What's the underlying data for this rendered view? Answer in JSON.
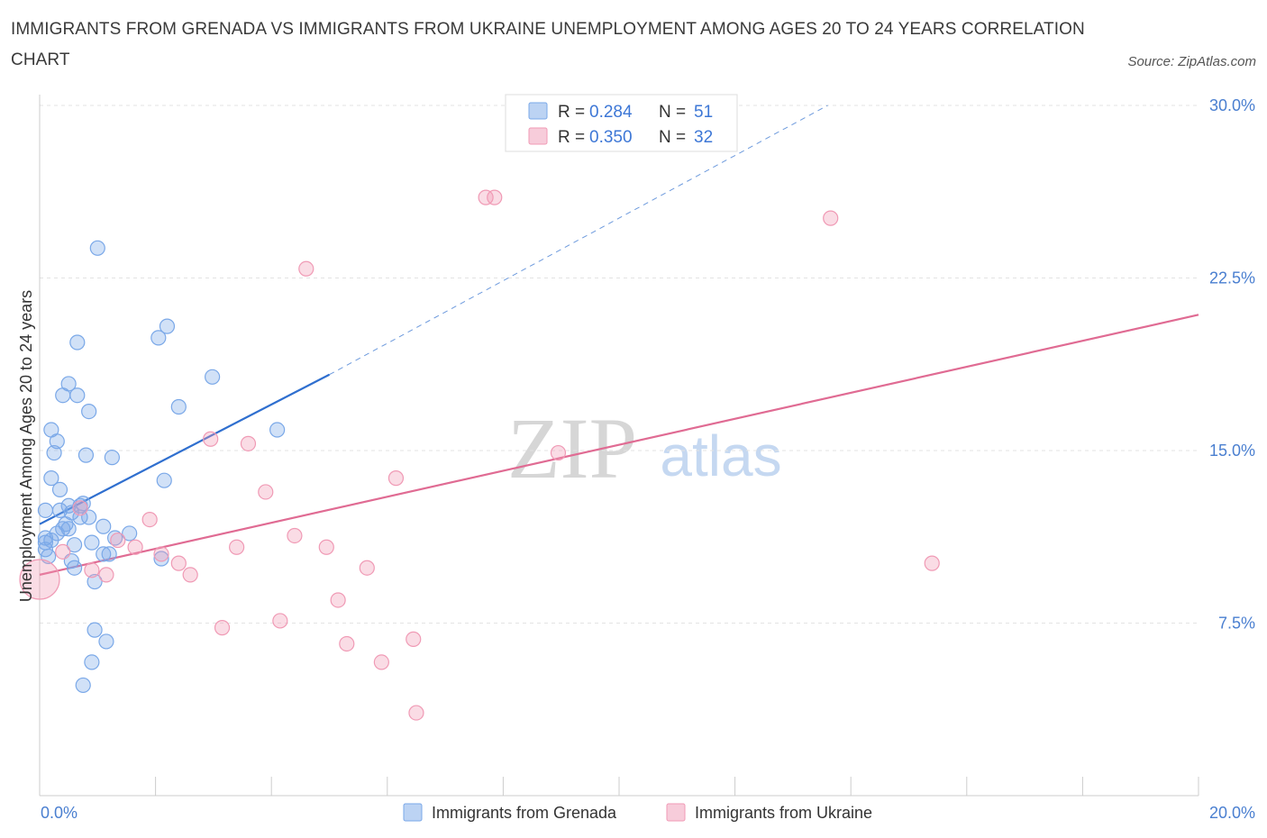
{
  "title": "IMMIGRANTS FROM GRENADA VS IMMIGRANTS FROM UKRAINE UNEMPLOYMENT AMONG AGES 20 TO 24 YEARS CORRELATION CHART",
  "source": "Source: ZipAtlas.com",
  "watermark": {
    "zip": "ZIP",
    "atlas": "atlas"
  },
  "chart_data": {
    "type": "scatter",
    "title": "IMMIGRANTS FROM GRENADA VS IMMIGRANTS FROM UKRAINE UNEMPLOYMENT AMONG AGES 20 TO 24 YEARS CORRELATION CHART",
    "xlabel": "",
    "ylabel": "Unemployment Among Ages 20 to 24 years",
    "xlim": [
      0,
      20
    ],
    "ylim": [
      0,
      30
    ],
    "x_tick_labels": {
      "min": "0.0%",
      "max": "20.0%"
    },
    "y_ticks": [
      {
        "value": 7.5,
        "label": "7.5%"
      },
      {
        "value": 15,
        "label": "15.0%"
      },
      {
        "value": 22.5,
        "label": "22.5%"
      },
      {
        "value": 30,
        "label": "30.0%"
      }
    ],
    "legend": [
      {
        "r_label": "R =",
        "r": "0.284",
        "n_label": "N =",
        "n": "51",
        "color": "#7aa8e8"
      },
      {
        "r_label": "R =",
        "r": "0.350",
        "n_label": "N =",
        "n": "32",
        "color": "#f09ab5"
      }
    ],
    "series": [
      {
        "name": "Immigrants from Grenada",
        "color": "#7aa8e8",
        "line_color": "#2f6fcf",
        "trend": {
          "x0": 0,
          "y0": 11.8,
          "x1": 5.0,
          "y1": 18.3,
          "x_dash_end": 13.6,
          "y_dash_end": 30.0
        },
        "points": [
          [
            0.1,
            11.2
          ],
          [
            0.1,
            11.0
          ],
          [
            0.1,
            10.7
          ],
          [
            0.1,
            12.4
          ],
          [
            0.2,
            11.1
          ],
          [
            0.15,
            10.4
          ],
          [
            0.2,
            13.8
          ],
          [
            0.25,
            14.9
          ],
          [
            0.2,
            15.9
          ],
          [
            0.3,
            15.4
          ],
          [
            0.35,
            12.4
          ],
          [
            0.35,
            13.3
          ],
          [
            0.4,
            11.6
          ],
          [
            0.45,
            11.8
          ],
          [
            0.4,
            17.4
          ],
          [
            0.5,
            17.9
          ],
          [
            0.5,
            11.6
          ],
          [
            0.55,
            12.3
          ],
          [
            0.6,
            10.9
          ],
          [
            0.6,
            9.9
          ],
          [
            0.55,
            10.2
          ],
          [
            0.65,
            19.7
          ],
          [
            0.65,
            17.4
          ],
          [
            0.7,
            12.1
          ],
          [
            0.7,
            12.6
          ],
          [
            0.75,
            12.7
          ],
          [
            0.8,
            14.8
          ],
          [
            0.85,
            12.1
          ],
          [
            0.85,
            16.7
          ],
          [
            0.9,
            11.0
          ],
          [
            0.95,
            9.3
          ],
          [
            0.95,
            7.2
          ],
          [
            1.0,
            23.8
          ],
          [
            1.1,
            11.7
          ],
          [
            1.1,
            10.5
          ],
          [
            1.15,
            6.7
          ],
          [
            1.2,
            10.5
          ],
          [
            1.25,
            14.7
          ],
          [
            1.3,
            11.2
          ],
          [
            1.55,
            11.4
          ],
          [
            2.05,
            19.9
          ],
          [
            2.1,
            10.3
          ],
          [
            2.15,
            13.7
          ],
          [
            2.2,
            20.4
          ],
          [
            2.4,
            16.9
          ],
          [
            2.98,
            18.2
          ],
          [
            4.1,
            15.9
          ],
          [
            0.9,
            5.8
          ],
          [
            0.75,
            4.8
          ],
          [
            0.3,
            11.4
          ],
          [
            0.5,
            12.6
          ]
        ]
      },
      {
        "name": "Immigrants from Ukraine",
        "color": "#f09ab5",
        "line_color": "#e06b93",
        "trend": {
          "x0": 0,
          "y0": 9.6,
          "x1": 20,
          "y1": 20.9
        },
        "points": [
          [
            0.0,
            9.4
          ],
          [
            0.4,
            10.6
          ],
          [
            0.7,
            12.5
          ],
          [
            0.9,
            9.8
          ],
          [
            1.15,
            9.6
          ],
          [
            1.35,
            11.1
          ],
          [
            1.65,
            10.8
          ],
          [
            1.9,
            12.0
          ],
          [
            2.1,
            10.5
          ],
          [
            2.4,
            10.1
          ],
          [
            2.6,
            9.6
          ],
          [
            2.95,
            15.5
          ],
          [
            3.15,
            7.3
          ],
          [
            3.4,
            10.8
          ],
          [
            3.6,
            15.3
          ],
          [
            3.9,
            13.2
          ],
          [
            4.15,
            7.6
          ],
          [
            4.4,
            11.3
          ],
          [
            4.6,
            22.9
          ],
          [
            4.95,
            10.8
          ],
          [
            5.15,
            8.5
          ],
          [
            5.3,
            6.6
          ],
          [
            5.65,
            9.9
          ],
          [
            5.9,
            5.8
          ],
          [
            6.15,
            13.8
          ],
          [
            6.45,
            6.8
          ],
          [
            6.5,
            3.6
          ],
          [
            7.7,
            26.0
          ],
          [
            7.85,
            26.0
          ],
          [
            8.95,
            14.9
          ],
          [
            13.65,
            25.1
          ],
          [
            15.4,
            10.1
          ]
        ]
      }
    ]
  }
}
